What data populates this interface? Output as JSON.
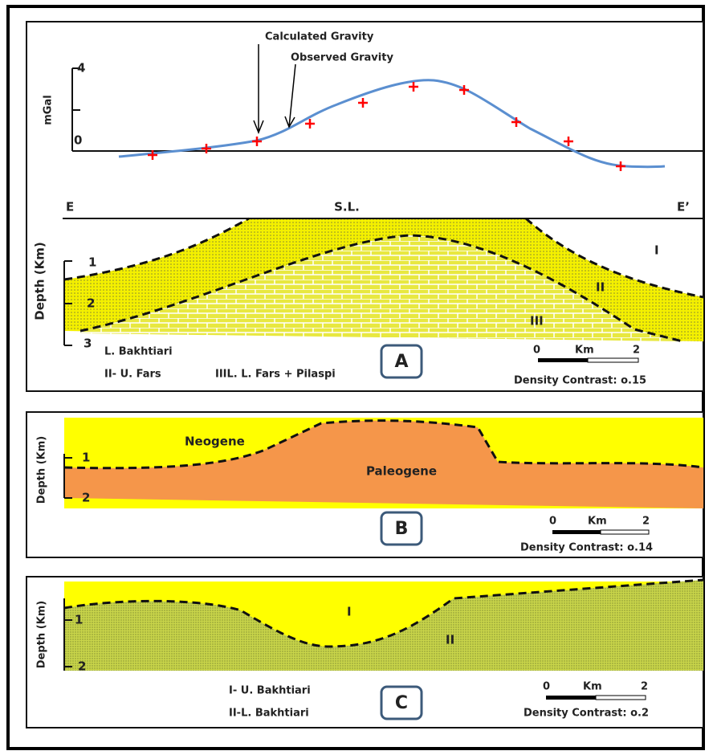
{
  "panel_a": {
    "arrow_labels": [
      "Calculated Gravity",
      "Observed Gravity"
    ],
    "gravity_axis": {
      "label": "mGal",
      "ticks": [
        "4",
        "0"
      ]
    },
    "profile_ends": [
      "E",
      "S.L.",
      "E’"
    ],
    "depth_axis": {
      "label": "Depth (Km)",
      "ticks": [
        "1",
        "2",
        "3"
      ]
    },
    "layer_marks": [
      "I",
      "II",
      "III"
    ],
    "legend": [
      "L. Bakhtiari",
      "II- U. Fars",
      "IIIL. L. Fars + Pilaspi"
    ],
    "panel_label": "A",
    "scale": [
      "0",
      "Km",
      "2"
    ],
    "density": "Density Contrast: o.15"
  },
  "panel_b": {
    "units": [
      "Neogene",
      "Paleogene"
    ],
    "depth_axis": {
      "label": "Depth (Km)",
      "ticks": [
        "1",
        "2"
      ]
    },
    "panel_label": "B",
    "scale": [
      "0",
      "Km",
      "2"
    ],
    "density": "Density Contrast: o.14"
  },
  "panel_c": {
    "layer_marks": [
      "I",
      "II"
    ],
    "depth_axis": {
      "label": "Depth (Km)",
      "ticks": [
        "1",
        "2"
      ]
    },
    "legend": [
      "I- U. Bakhtiari",
      "II-L. Bakhtiari"
    ],
    "panel_label": "C",
    "scale": [
      "0",
      "Km",
      "2"
    ],
    "density": "Density Contrast: o.2"
  }
}
